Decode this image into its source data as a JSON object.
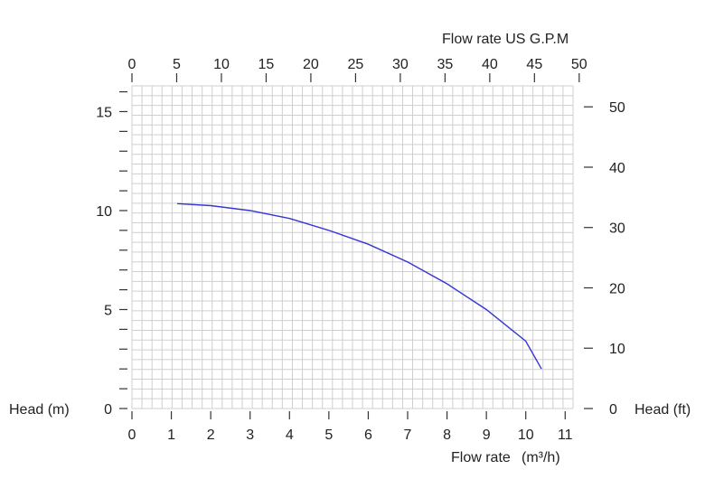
{
  "chart_data": {
    "type": "line",
    "title": "",
    "xlabel_bottom": "Flow rate",
    "xlabel_bottom_unit": "(m³/h)",
    "xlabel_top": "Flow rate US  G.P.M",
    "ylabel_left": "Head (m)",
    "ylabel_right": "Head (ft)",
    "xlim": [
      0,
      11.2
    ],
    "ylim": [
      0,
      16.3
    ],
    "x_ticks": [
      "0",
      "1",
      "2",
      "3",
      "4",
      "5",
      "6",
      "7",
      "8",
      "9",
      "10",
      "11"
    ],
    "x_top_ticks": [
      "0",
      "5",
      "10",
      "15",
      "20",
      "25",
      "30",
      "35",
      "40",
      "45",
      "50"
    ],
    "y_ticks": [
      "0",
      "5",
      "10",
      "15"
    ],
    "y_right_ticks": [
      "0",
      "10",
      "20",
      "30",
      "40",
      "50"
    ],
    "grid": true,
    "line_color": "#3535d6",
    "series": [
      {
        "x": [
          1.15,
          2,
          3,
          4,
          5,
          6,
          7,
          8,
          9,
          10,
          10.4
        ],
        "y": [
          10.35,
          10.25,
          10.0,
          9.6,
          9.0,
          8.3,
          7.4,
          6.3,
          5.0,
          3.4,
          2.0
        ]
      }
    ]
  }
}
